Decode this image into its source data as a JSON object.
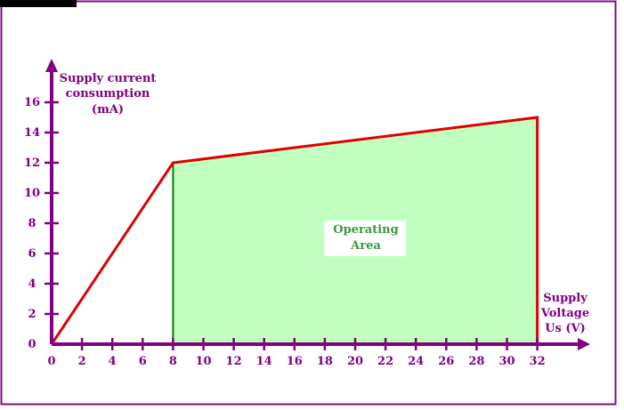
{
  "colors": {
    "frame": "#7b0f7b",
    "axis": "#800080",
    "curve": "#e00000",
    "area_fill": "#c0ffc0",
    "area_edge": "#008000",
    "area_label": "#3a9a3a",
    "tab": "#000000"
  },
  "chart_data": {
    "type": "area",
    "ylabel_lines": [
      "Supply current",
      "consumption",
      "(mA)"
    ],
    "xlabel_lines": [
      "Supply",
      "Voltage",
      "Us (V)"
    ],
    "x_ticks": [
      0,
      2,
      4,
      6,
      8,
      10,
      12,
      14,
      16,
      18,
      20,
      22,
      24,
      26,
      28,
      30,
      32
    ],
    "y_ticks": [
      0,
      2,
      4,
      6,
      8,
      10,
      12,
      14,
      16
    ],
    "xlim": [
      0,
      32
    ],
    "ylim": [
      0,
      16
    ],
    "curve": {
      "x": [
        0,
        8,
        32,
        32
      ],
      "y": [
        0,
        12,
        15,
        0
      ]
    },
    "operating_area": {
      "x": [
        8,
        8,
        32,
        32
      ],
      "y": [
        0,
        12,
        15,
        0
      ]
    },
    "annotation": [
      "Operating",
      "Area"
    ],
    "grid": false
  }
}
